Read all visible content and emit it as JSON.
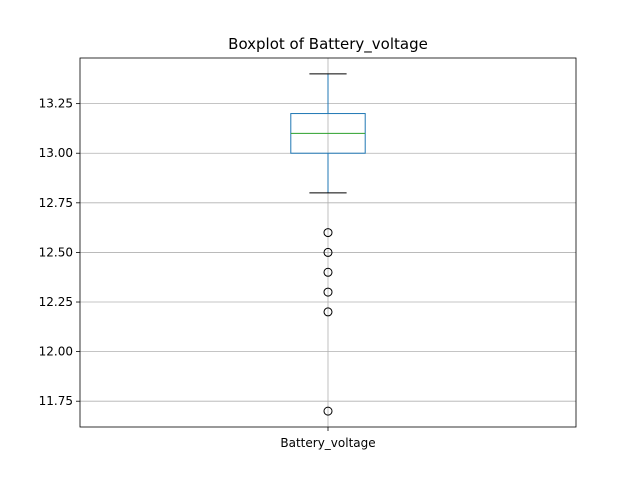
{
  "chart_data": {
    "type": "box",
    "title": "Boxplot of Battery_voltage",
    "xlabel": "",
    "ylabel": "",
    "categories": [
      "Battery_voltage"
    ],
    "ylim": [
      11.62,
      13.48
    ],
    "yticks": [
      11.75,
      12.0,
      12.25,
      12.5,
      12.75,
      13.0,
      13.25
    ],
    "ytick_labels": [
      "11.75",
      "12.00",
      "12.25",
      "12.50",
      "12.75",
      "13.00",
      "13.25"
    ],
    "grid": true,
    "boxes": [
      {
        "name": "Battery_voltage",
        "whisker_low": 12.8,
        "q1": 13.0,
        "median": 13.1,
        "q3": 13.2,
        "whisker_high": 13.4,
        "outliers": [
          12.6,
          12.5,
          12.4,
          12.3,
          12.2,
          11.7
        ]
      }
    ],
    "colors": {
      "box": "#1f77b4",
      "median": "#2ca02c",
      "grid": "#b0b0b0"
    }
  }
}
